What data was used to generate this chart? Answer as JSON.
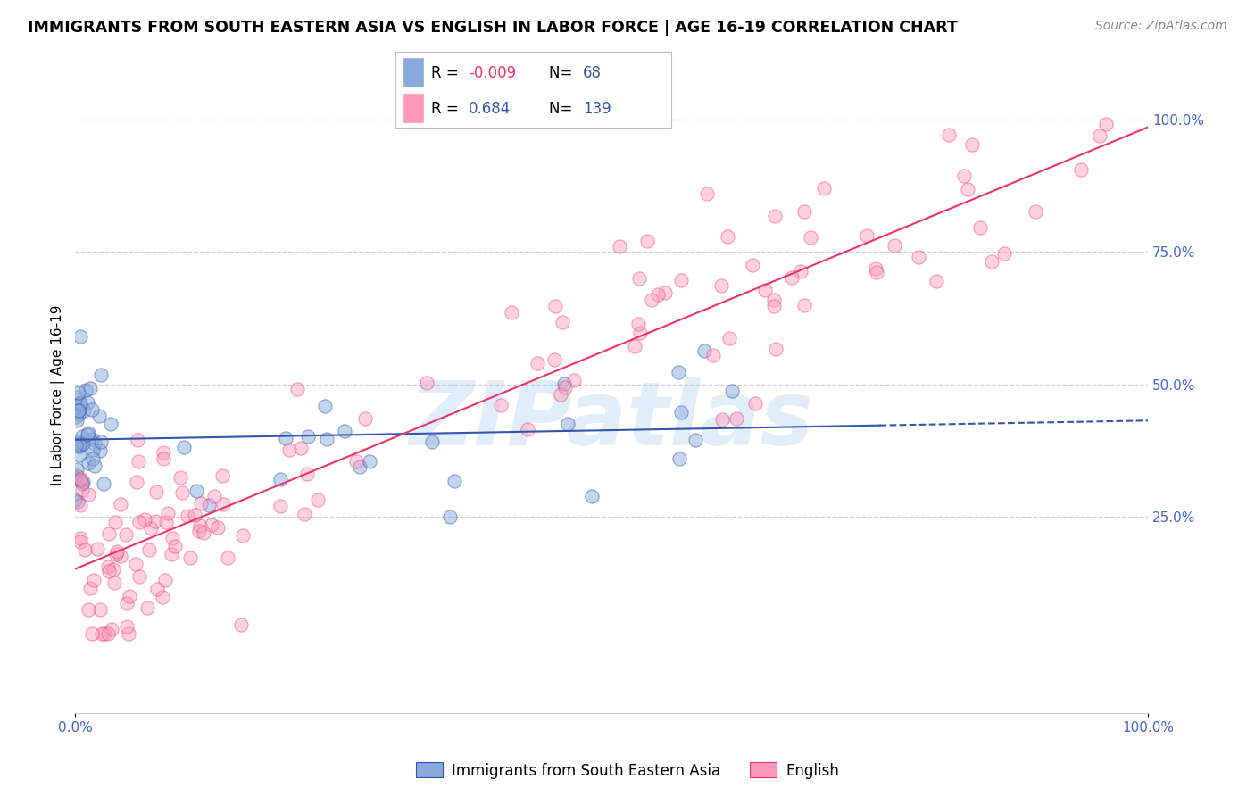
{
  "title": "IMMIGRANTS FROM SOUTH EASTERN ASIA VS ENGLISH IN LABOR FORCE | AGE 16-19 CORRELATION CHART",
  "source": "Source: ZipAtlas.com",
  "ylabel": "In Labor Force | Age 16-19",
  "xlim": [
    0.0,
    1.0
  ],
  "ylim": [
    -0.12,
    1.08
  ],
  "ytick_labels_right": [
    "25.0%",
    "50.0%",
    "75.0%",
    "100.0%"
  ],
  "ytick_vals_right": [
    0.25,
    0.5,
    0.75,
    1.0
  ],
  "blue_R": -0.009,
  "blue_N": 68,
  "pink_R": 0.684,
  "pink_N": 139,
  "blue_color": "#89AADD",
  "pink_color": "#FF99BB",
  "blue_line_color": "#3355AA",
  "pink_line_color": "#EE3366",
  "watermark": "ZIPatlas",
  "watermark_color": "#AACCEE",
  "background_color": "#FFFFFF",
  "grid_color": "#CCCCDD",
  "axis_color": "#4466CC",
  "legend_R_blue_color": "#EE3366",
  "legend_R_pink_color": "#3355AA",
  "legend_N_color": "#3355AA"
}
